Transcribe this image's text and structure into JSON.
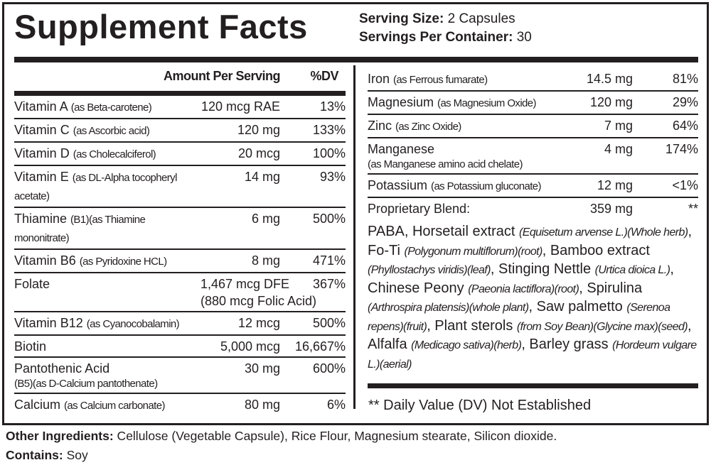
{
  "title": "Supplement Facts",
  "serving": {
    "size_label": "Serving Size:",
    "size": " 2 Capsules",
    "per_container_label": "Servings Per Container:",
    "per_container": " 30"
  },
  "left": {
    "header_amount": "Amount Per Serving",
    "header_dv": "%DV",
    "rows": [
      {
        "name": "Vitamin A ",
        "src": "(as Beta-carotene)",
        "amt": "120 mcg RAE",
        "dv": "13%"
      },
      {
        "name": "Vitamin C ",
        "src": "(as Ascorbic acid)",
        "amt": "120 mg",
        "dv": "133%"
      },
      {
        "name": "Vitamin D ",
        "src": "(as Cholecalciferol)",
        "amt": "20 mcg",
        "dv": "100%"
      },
      {
        "name": "Vitamin E ",
        "src": "(as DL-Alpha tocopheryl acetate)",
        "amt": "14 mg",
        "dv": "93%"
      },
      {
        "name": "Thiamine ",
        "src": "(B1)(as Thiamine mononitrate)",
        "amt": "6 mg",
        "dv": "500%"
      },
      {
        "name": "Vitamin B6 ",
        "src": "(as Pyridoxine HCL)",
        "amt": "8 mg",
        "dv": "471%"
      },
      {
        "name": "Folate",
        "src": "",
        "amt": "1,467 mcg DFE",
        "amt2": "(880 mcg Folic Acid)",
        "dv": "367%"
      },
      {
        "name": "Vitamin B12 ",
        "src": "(as Cyanocobalamin)",
        "amt": "12 mcg",
        "dv": "500%"
      },
      {
        "name": "Biotin",
        "src": "",
        "amt": "5,000 mcg",
        "dv": "16,667%"
      },
      {
        "name": "Pantothenic Acid",
        "src2": "(B5)(as  D-Calcium pantothenate)",
        "amt": "30 mg",
        "dv": "600%"
      },
      {
        "name": "Calcium ",
        "src": "(as Calcium carbonate)",
        "amt": "80 mg",
        "dv": "6%"
      }
    ]
  },
  "right": {
    "rows": [
      {
        "name": "Iron ",
        "src": "(as Ferrous fumarate)",
        "amt": "14.5 mg",
        "dv": "81%"
      },
      {
        "name": "Magnesium ",
        "src": "(as Magnesium Oxide)",
        "amt": "120 mg",
        "dv": "29%"
      },
      {
        "name": "Zinc ",
        "src": "(as Zinc Oxide)",
        "amt": "7 mg",
        "dv": "64%"
      },
      {
        "name": "Manganese",
        "src2": "(as Manganese amino acid chelate)",
        "amt": "4 mg",
        "dv": "174%"
      },
      {
        "name": "Potassium ",
        "src": "(as Potassium gluconate)",
        "amt": "12 mg",
        "dv": "<1%"
      },
      {
        "name": "Proprietary Blend:",
        "src": "",
        "amt": "359 mg",
        "dv": "**"
      }
    ],
    "blend": [
      [
        "PABA, Horsetail extract ",
        ""
      ],
      [
        "(Equisetum arvense L.)(Whole herb)",
        "i"
      ],
      [
        ", Fo-Ti ",
        ""
      ],
      [
        "(Polygonum multiflorum)(root)",
        "i"
      ],
      [
        ", Bamboo extract ",
        ""
      ],
      [
        "(Phyllostachys viridis)(leaf)",
        "i"
      ],
      [
        ", Stinging Nettle ",
        ""
      ],
      [
        "(Urtica dioica L.)",
        "i"
      ],
      [
        ",  Chinese Peony ",
        ""
      ],
      [
        "(Paeonia lactiflora)(root)",
        "i"
      ],
      [
        ", Spirulina ",
        ""
      ],
      [
        "(Arthrospira platensis)(whole plant)",
        "i"
      ],
      [
        ", Saw palmetto ",
        ""
      ],
      [
        "(Serenoa repens)(fruit)",
        "i"
      ],
      [
        ", Plant sterols ",
        ""
      ],
      [
        "(from Soy Bean)(Glycine max)(seed)",
        "i"
      ],
      [
        ", Alfalfa ",
        ""
      ],
      [
        "(Medicago sativa)(herb)",
        "i"
      ],
      [
        ", Barley grass ",
        ""
      ],
      [
        "(Hordeum vulgare L.)(aerial)",
        "i"
      ]
    ],
    "footnote": "** Daily Value (DV) Not Established"
  },
  "other": {
    "label": "Other Ingredients:",
    "text": " Cellulose (Vegetable Capsule), Rice Flour, Magnesium stearate, Silicon dioxide.",
    "contains_label": "Contains:",
    "contains": " Soy"
  }
}
